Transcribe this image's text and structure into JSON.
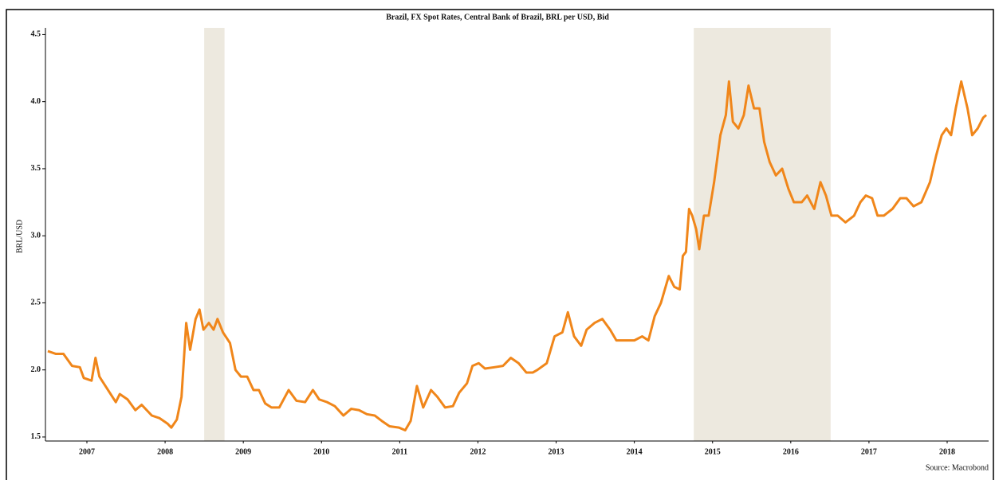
{
  "chart_data": {
    "type": "line",
    "title": "Brazil, FX Spot Rates, Central Bank of Brazil, BRL per USD, Bid",
    "ylabel": "BRL/USD",
    "source": "Source: Macrobond",
    "x": [
      2007.0,
      2007.1,
      2007.2,
      2007.31,
      2007.41,
      2007.46,
      2007.56,
      2007.61,
      2007.66,
      2007.77,
      2007.87,
      2007.92,
      2008.02,
      2008.12,
      2008.2,
      2008.33,
      2008.43,
      2008.53,
      2008.58,
      2008.65,
      2008.71,
      2008.77,
      2008.82,
      2008.89,
      2008.94,
      2008.99,
      2009.06,
      2009.12,
      2009.17,
      2009.24,
      2009.33,
      2009.4,
      2009.47,
      2009.55,
      2009.63,
      2009.7,
      2009.78,
      2009.86,
      2009.96,
      2010.08,
      2010.18,
      2010.29,
      2010.39,
      2010.47,
      2010.57,
      2010.67,
      2010.78,
      2010.88,
      2010.98,
      2011.08,
      2011.18,
      2011.27,
      2011.37,
      2011.49,
      2011.57,
      2011.64,
      2011.72,
      2011.8,
      2011.9,
      2011.98,
      2012.08,
      2012.18,
      2012.26,
      2012.36,
      2012.43,
      2012.51,
      2012.59,
      2012.71,
      2012.82,
      2012.92,
      2013.02,
      2013.12,
      2013.2,
      2013.26,
      2013.38,
      2013.48,
      2013.58,
      2013.65,
      2013.73,
      2013.82,
      2013.89,
      2013.99,
      2014.09,
      2014.19,
      2014.27,
      2014.4,
      2014.5,
      2014.6,
      2014.68,
      2014.76,
      2014.84,
      2014.94,
      2015.01,
      2015.08,
      2015.12,
      2015.16,
      2015.2,
      2015.24,
      2015.29,
      2015.33,
      2015.39,
      2015.45,
      2015.52,
      2015.6,
      2015.67,
      2015.71,
      2015.76,
      2015.83,
      2015.9,
      2015.96,
      2016.03,
      2016.1,
      2016.16,
      2016.23,
      2016.31,
      2016.39,
      2016.47,
      2016.54,
      2016.64,
      2016.71,
      2016.8,
      2016.88,
      2016.95,
      2017.02,
      2017.1,
      2017.2,
      2017.31,
      2017.39,
      2017.46,
      2017.54,
      2017.61,
      2017.69,
      2017.8,
      2017.9,
      2017.98,
      2018.07,
      2018.17,
      2018.28,
      2018.36,
      2018.43,
      2018.49,
      2018.55,
      2018.61,
      2018.68,
      2018.76,
      2018.82,
      2018.89,
      2018.96,
      2019.0
    ],
    "series": [
      {
        "name": "BRL/USD",
        "color": "#f0861a",
        "values": [
          2.14,
          2.12,
          2.12,
          2.03,
          2.02,
          1.94,
          1.92,
          2.09,
          1.95,
          1.85,
          1.76,
          1.82,
          1.78,
          1.7,
          1.74,
          1.66,
          1.64,
          1.6,
          1.57,
          1.63,
          1.8,
          2.35,
          2.15,
          2.38,
          2.45,
          2.3,
          2.35,
          2.3,
          2.38,
          2.28,
          2.2,
          2.0,
          1.95,
          1.95,
          1.85,
          1.85,
          1.75,
          1.72,
          1.72,
          1.85,
          1.77,
          1.76,
          1.85,
          1.78,
          1.76,
          1.73,
          1.66,
          1.71,
          1.7,
          1.67,
          1.66,
          1.62,
          1.58,
          1.57,
          1.55,
          1.62,
          1.88,
          1.72,
          1.85,
          1.8,
          1.72,
          1.73,
          1.83,
          1.9,
          2.03,
          2.05,
          2.01,
          2.02,
          2.03,
          2.09,
          2.05,
          1.98,
          1.98,
          2.0,
          2.05,
          2.25,
          2.28,
          2.43,
          2.25,
          2.18,
          2.3,
          2.35,
          2.38,
          2.3,
          2.22,
          2.22,
          2.22,
          2.25,
          2.22,
          2.4,
          2.5,
          2.7,
          2.62,
          2.6,
          2.85,
          2.88,
          3.2,
          3.15,
          3.05,
          2.9,
          3.15,
          3.15,
          3.4,
          3.75,
          3.9,
          4.15,
          3.85,
          3.8,
          3.9,
          4.12,
          3.95,
          3.95,
          3.7,
          3.55,
          3.45,
          3.5,
          3.35,
          3.25,
          3.25,
          3.3,
          3.2,
          3.4,
          3.3,
          3.15,
          3.15,
          3.1,
          3.15,
          3.25,
          3.3,
          3.28,
          3.15,
          3.15,
          3.2,
          3.28,
          3.28,
          3.22,
          3.25,
          3.4,
          3.6,
          3.75,
          3.8,
          3.75,
          3.95,
          4.15,
          3.95,
          3.75,
          3.8,
          3.88,
          3.9
        ]
      }
    ],
    "shaded_periods": [
      [
        2009.0,
        2009.26
      ],
      [
        2015.26,
        2017.01
      ]
    ],
    "shade_color": "#ede9df",
    "xlim": [
      2006.97,
      2019.03
    ],
    "xticks": [
      {
        "value": 2007.5,
        "label": "2007"
      },
      {
        "value": 2008.5,
        "label": "2008"
      },
      {
        "value": 2009.5,
        "label": "2009"
      },
      {
        "value": 2010.5,
        "label": "2010"
      },
      {
        "value": 2011.5,
        "label": "2011"
      },
      {
        "value": 2012.5,
        "label": "2012"
      },
      {
        "value": 2013.5,
        "label": "2013"
      },
      {
        "value": 2014.5,
        "label": "2014"
      },
      {
        "value": 2015.5,
        "label": "2015"
      },
      {
        "value": 2016.5,
        "label": "2016"
      },
      {
        "value": 2017.5,
        "label": "2017"
      },
      {
        "value": 2018.5,
        "label": "2018"
      }
    ],
    "ylim": [
      1.47,
      4.55
    ],
    "yticks": [
      1.5,
      {
        "value": 2,
        "label": "2.0"
      },
      2.5,
      {
        "value": 3,
        "label": "3.0"
      },
      3.5,
      {
        "value": 4,
        "label": "4.0"
      },
      4.5
    ]
  }
}
